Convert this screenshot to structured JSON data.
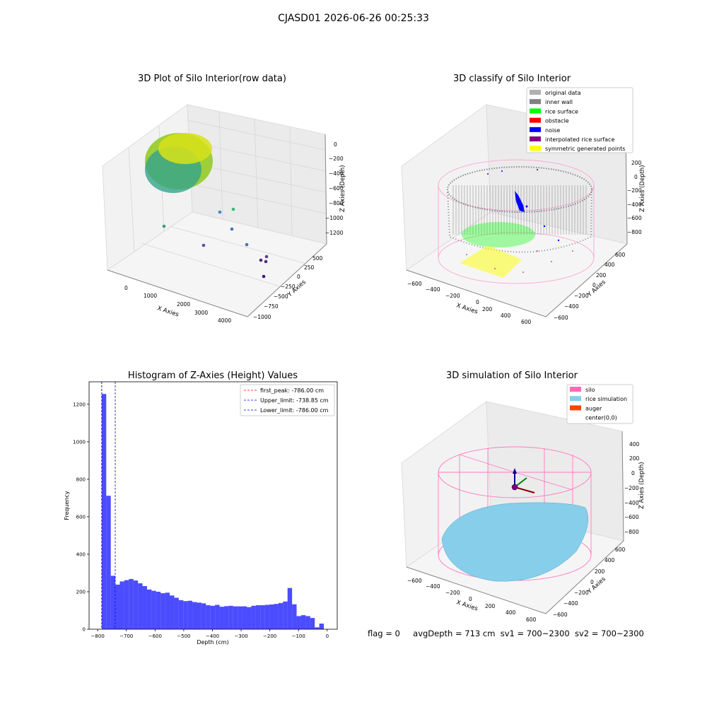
{
  "suptitle": "CJASD01 2026-06-26 00:25:33",
  "panels": {
    "raw": {
      "title": "3D Plot of Silo Interior(row data)",
      "xlabel": "X Axies",
      "ylabel": "Y Axies",
      "zlabel": "Z Axies (Depth)",
      "xticks": [
        "0",
        "1000",
        "2000",
        "3000",
        "4000"
      ],
      "yticks": [
        "500",
        "250",
        "0",
        "−250",
        "−500",
        "−750",
        "−1000"
      ],
      "zticks": [
        "0",
        "−200",
        "−400",
        "−600",
        "−800",
        "−1000",
        "−1200"
      ]
    },
    "classify": {
      "title": "3D classify of Silo Interior",
      "xlabel": "X Axies",
      "ylabel": "Y Axies",
      "zlabel": "Z Axies (Depth)",
      "xticks": [
        "−600",
        "−400",
        "−200",
        "0",
        "200",
        "400",
        "600"
      ],
      "yticks": [
        "600",
        "400",
        "200",
        "0",
        "−200",
        "−400",
        "−600"
      ],
      "zticks": [
        "200",
        "0",
        "−200",
        "−400",
        "−600",
        "−800"
      ],
      "legend": [
        {
          "label": "original data",
          "color": "#b0b0b0"
        },
        {
          "label": "inner wall",
          "color": "#808080"
        },
        {
          "label": "rice surface",
          "color": "#00ff00"
        },
        {
          "label": "obstacle",
          "color": "#ff0000"
        },
        {
          "label": "noise",
          "color": "#0000ff"
        },
        {
          "label": "interpolated rice surface",
          "color": "#800080"
        },
        {
          "label": "symmetric generated points",
          "color": "#ffff00"
        }
      ]
    },
    "simulation": {
      "title": "3D simulation of Silo Interior",
      "xlabel": "X Axies",
      "ylabel": "Y Axies",
      "zlabel": "Z Axies (Depth)",
      "xticks": [
        "−600",
        "−400",
        "−200",
        "0",
        "200",
        "400",
        "600"
      ],
      "yticks": [
        "600",
        "400",
        "200",
        "0",
        "−200",
        "−400",
        "−600"
      ],
      "zticks": [
        "400",
        "200",
        "0",
        "−200",
        "−400",
        "−600",
        "−800"
      ],
      "legend": [
        {
          "label": "silo",
          "color": "#ff69b4"
        },
        {
          "label": "rice simulation",
          "color": "#87ceeb"
        },
        {
          "label": "auger",
          "color": "#ff4500"
        },
        {
          "label": "center(0,0)",
          "color": "#ffffff"
        }
      ]
    }
  },
  "chart_data": {
    "type": "bar",
    "title": "Histogram of Z-Axies (Height) Values",
    "xlabel": "Depth (cm)",
    "ylabel": "Frequency",
    "xlim": [
      -830,
      35
    ],
    "ylim": [
      0,
      1320
    ],
    "xticks": [
      -800,
      -700,
      -600,
      -500,
      -400,
      -300,
      -200,
      -100,
      0
    ],
    "xtick_labels": [
      "−800",
      "−700",
      "−600",
      "−500",
      "−400",
      "−300",
      "−200",
      "−100",
      "0"
    ],
    "yticks": [
      0,
      200,
      400,
      600,
      800,
      1000,
      1200
    ],
    "bar_color": "#0000ff",
    "bin_start": -786,
    "bin_width": 15.8,
    "values": [
      1255,
      712,
      285,
      238,
      255,
      262,
      268,
      260,
      245,
      230,
      212,
      205,
      200,
      192,
      195,
      180,
      168,
      155,
      150,
      152,
      145,
      142,
      138,
      128,
      125,
      130,
      120,
      123,
      125,
      122,
      122,
      122,
      118,
      125,
      128,
      128,
      130,
      132,
      135,
      140,
      148,
      220,
      133,
      70,
      75,
      70,
      60,
      10,
      30
    ],
    "vlines": [
      {
        "label": "first_peak: -786.00 cm",
        "x": -786.0,
        "color": "#ff0000"
      },
      {
        "label": "Upper_limit: -738.85 cm",
        "x": -738.85,
        "color": "#0000ff"
      },
      {
        "label": "Lower_limit: -786.00 cm",
        "x": -786.0,
        "color": "#0000ff"
      }
    ]
  },
  "status": {
    "flag": "flag = 0",
    "avg_depth": "avgDepth = 713 cm",
    "sv1": "sv1 = 700~2300",
    "sv2": "sv2 = 700~2300"
  }
}
